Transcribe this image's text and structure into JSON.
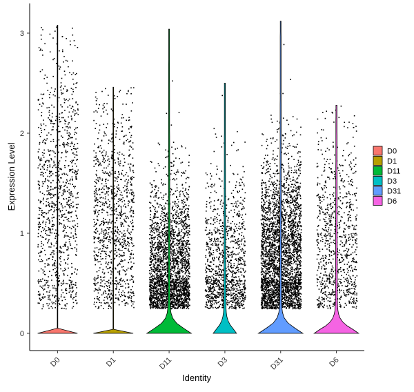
{
  "chart_data": {
    "type": "violin",
    "xlabel": "Identity",
    "ylabel": "Expression Level",
    "ylim": [
      -0.15,
      3.2
    ],
    "y_ticks": [
      "0",
      "1",
      "2",
      "3"
    ],
    "categories": [
      "D0",
      "D1",
      "D11",
      "D3",
      "D31",
      "D6"
    ],
    "series": [
      {
        "name": "D0",
        "color": "#F8766D",
        "max": 3.08,
        "violin_max_width_fraction": 0.0
      },
      {
        "name": "D1",
        "color": "#B79F00",
        "max": 2.46,
        "violin_max_width_fraction": 0.0
      },
      {
        "name": "D11",
        "color": "#00BA38",
        "max": 3.04,
        "violin_max_width_fraction": 0.9
      },
      {
        "name": "D3",
        "color": "#00BFC4",
        "max": 2.5,
        "violin_max_width_fraction": 0.45
      },
      {
        "name": "D31",
        "color": "#619CFF",
        "max": 3.12,
        "violin_max_width_fraction": 0.9
      },
      {
        "name": "D6",
        "color": "#F564E3",
        "max": 2.28,
        "violin_max_width_fraction": 0.9
      }
    ],
    "legend": {
      "position": "right",
      "entries": [
        "D0",
        "D1",
        "D11",
        "D3",
        "D31",
        "D6"
      ]
    },
    "grid": false
  }
}
